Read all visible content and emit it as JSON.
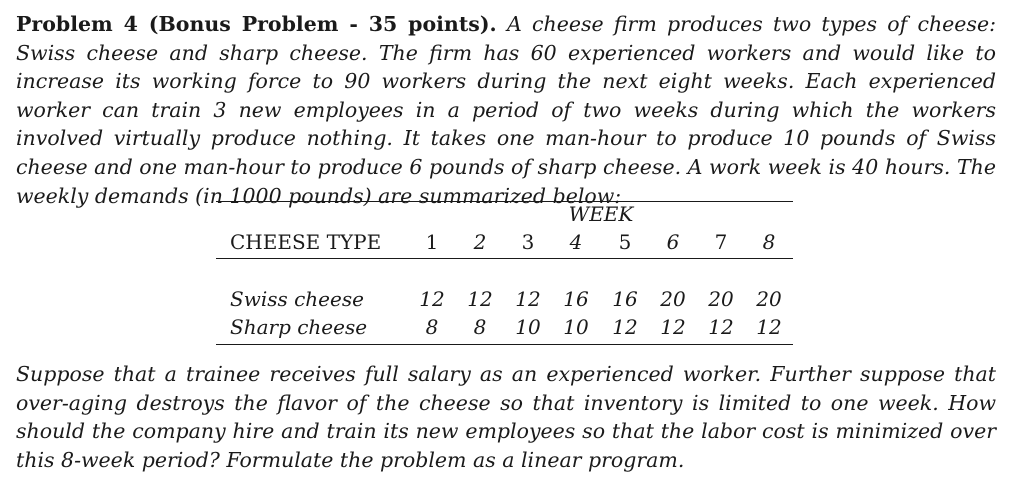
{
  "problem": {
    "title": "Problem 4 (Bonus Problem - 35 points).",
    "intro": "A cheese firm produces two types of cheese: Swiss cheese and sharp cheese. The firm has 60 experienced workers and would like to increase its working force to 90 workers during the next eight weeks. Each experienced worker can train 3 new employees in a period of two weeks during which the workers involved virtually produce nothing. It takes one man-hour to produce 10 pounds of Swiss cheese and one man-hour to produce 6 pounds of sharp cheese. A work week is 40 hours. The weekly demands (in 1000 pounds) are summarized below:",
    "closing": "Suppose that a trainee receives full salary as an experienced worker. Further suppose that over-aging destroys the flavor of the cheese so that inventory is limited to one week. How should the company hire and train its new employees so that the labor cost is minimized over this 8-week period? Formulate the problem as a linear program."
  },
  "table": {
    "group_header": "WEEK",
    "row_header": "CHEESE TYPE",
    "weeks": [
      "1",
      "2",
      "3",
      "4",
      "5",
      "6",
      "7",
      "8"
    ],
    "rows": [
      {
        "label": "Swiss cheese",
        "values": [
          "12",
          "12",
          "12",
          "16",
          "16",
          "20",
          "20",
          "20"
        ]
      },
      {
        "label": "Sharp cheese",
        "values": [
          "8",
          "8",
          "10",
          "10",
          "12",
          "12",
          "12",
          "12"
        ]
      }
    ]
  }
}
